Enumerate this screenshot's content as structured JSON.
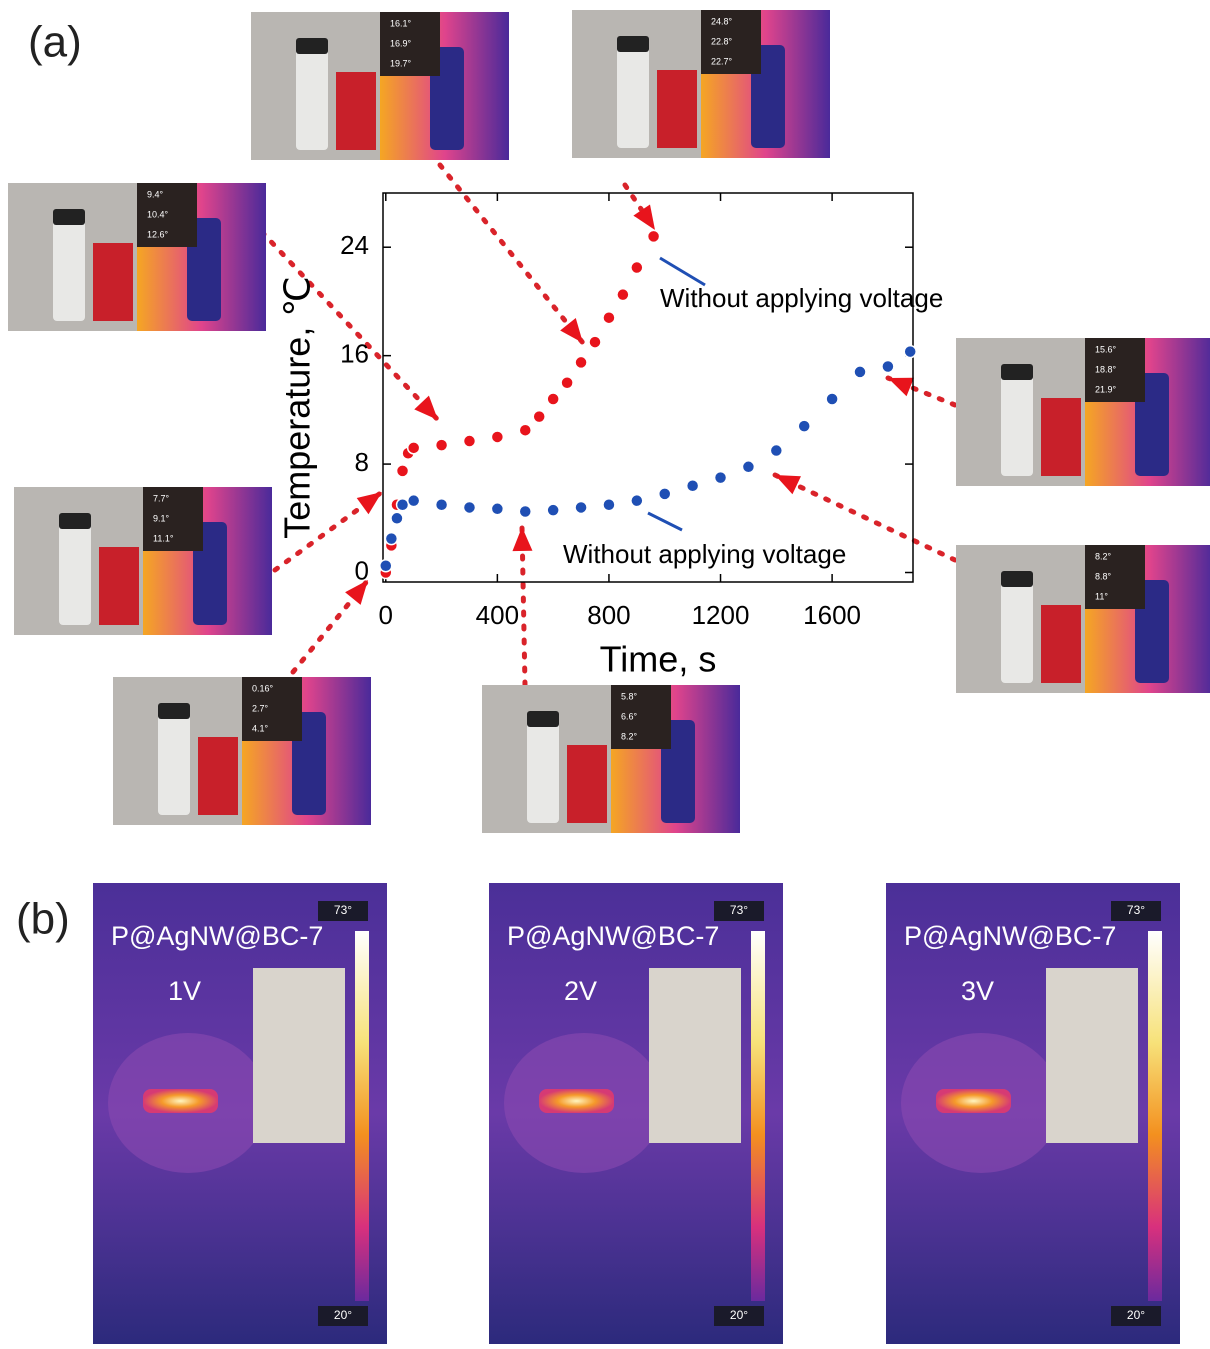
{
  "chart_data": {
    "type": "scatter",
    "xlabel": "Time, s",
    "ylabel": "Temperature, ℃",
    "xlim": [
      -10,
      1890
    ],
    "ylim": [
      -0.7,
      28
    ],
    "xticks": [
      0,
      400,
      800,
      1200,
      1600
    ],
    "yticks": [
      0,
      8,
      16,
      24
    ],
    "series": [
      {
        "name": "Without applying voltage",
        "color": "#e8141c",
        "x": [
          0,
          20,
          40,
          60,
          80,
          100,
          200,
          300,
          400,
          500,
          550,
          600,
          650,
          700,
          750,
          800,
          850,
          900,
          960
        ],
        "values": [
          0,
          2,
          5,
          7.5,
          8.8,
          9.2,
          9.4,
          9.7,
          10,
          10.5,
          11.5,
          12.8,
          14,
          15.5,
          17,
          18.8,
          20.5,
          22.5,
          24.8
        ]
      },
      {
        "name": "Without applying voltage",
        "color": "#1f4fb4",
        "x": [
          0,
          20,
          40,
          60,
          100,
          200,
          300,
          400,
          500,
          600,
          700,
          800,
          900,
          1000,
          1100,
          1200,
          1300,
          1400,
          1500,
          1600,
          1700,
          1800,
          1880
        ],
        "values": [
          0.5,
          2.5,
          4,
          5,
          5.3,
          5,
          4.8,
          4.7,
          4.5,
          4.6,
          4.8,
          5,
          5.3,
          5.8,
          6.4,
          7,
          7.8,
          9,
          10.8,
          12.8,
          14.8,
          15.2,
          16.3
        ]
      }
    ]
  },
  "panel_labels": [
    "(a)",
    "(b)"
  ],
  "insets": [
    {
      "readings": [
        "16.1°",
        "16.9°",
        "19.7°"
      ]
    },
    {
      "readings": [
        "24.8°",
        "22.8°",
        "22.7°"
      ]
    },
    {
      "readings": [
        "9.4°",
        "10.4°",
        "12.6°"
      ]
    },
    {
      "readings": [
        "7.7°",
        "9.1°",
        "11.1°"
      ]
    },
    {
      "readings": [
        "0.16°",
        "2.7°",
        "4.1°"
      ]
    },
    {
      "readings": [
        "5.8°",
        "6.6°",
        "8.2°"
      ]
    },
    {
      "readings": [
        "15.6°",
        "18.8°",
        "21.9°"
      ]
    },
    {
      "readings": [
        "8.2°",
        "8.8°",
        "11°"
      ]
    }
  ],
  "thermal_panels": [
    {
      "sample": "P@AgNW@BC-7",
      "voltage": "1V",
      "max": "73°",
      "min": "20°"
    },
    {
      "sample": "P@AgNW@BC-7",
      "voltage": "2V",
      "max": "73°",
      "min": "20°"
    },
    {
      "sample": "P@AgNW@BC-7",
      "voltage": "3V",
      "max": "73°",
      "min": "20°"
    }
  ]
}
